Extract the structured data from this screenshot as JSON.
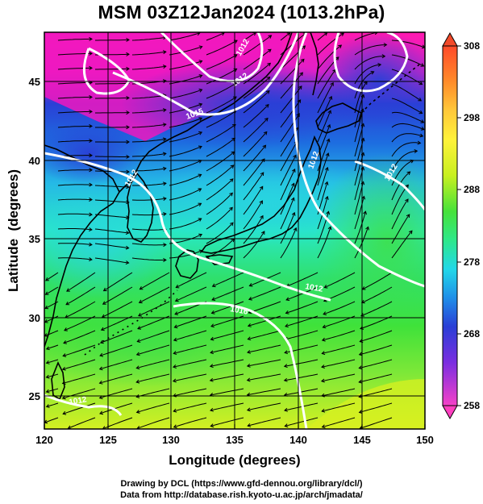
{
  "title": "MSM 03Z12Jan2024 (1013.2hPa)",
  "axes": {
    "xlabel": "Longitude (degrees)",
    "ylabel": "Latitude  (degrees)",
    "x_ticks": [
      "120",
      "125",
      "130",
      "135",
      "140",
      "145",
      "150"
    ],
    "y_ticks": [
      "25",
      "30",
      "35",
      "40",
      "45"
    ]
  },
  "map": {
    "lon_range": [
      120,
      150
    ],
    "lat_range": [
      22.4,
      47.6
    ],
    "field": "temperature (K) with surface streamlines and pressure contours",
    "isobar_labels": [
      "1015",
      "1012",
      "1012",
      "1012",
      "1016",
      "1012",
      "1012",
      "1012",
      "1012"
    ]
  },
  "colorbar": {
    "ticks": [
      "308",
      "298",
      "288",
      "278",
      "268",
      "258"
    ],
    "range": [
      258,
      308
    ],
    "colors": [
      "#ff2d5a",
      "#f542c8",
      "#9e32e0",
      "#2a3fd6",
      "#1f7fe8",
      "#22c8e8",
      "#2ef0b8",
      "#39e05a",
      "#7ee838",
      "#d8f020",
      "#fff23a",
      "#ffc83a",
      "#ff8c2a",
      "#f24a2a"
    ]
  },
  "credits": {
    "line1": "Drawing by DCL (https://www.gfd-dennou.org/library/dcl/)",
    "line2": "Data from http://database.rish.kyoto-u.ac.jp/arch/jmadata/"
  }
}
